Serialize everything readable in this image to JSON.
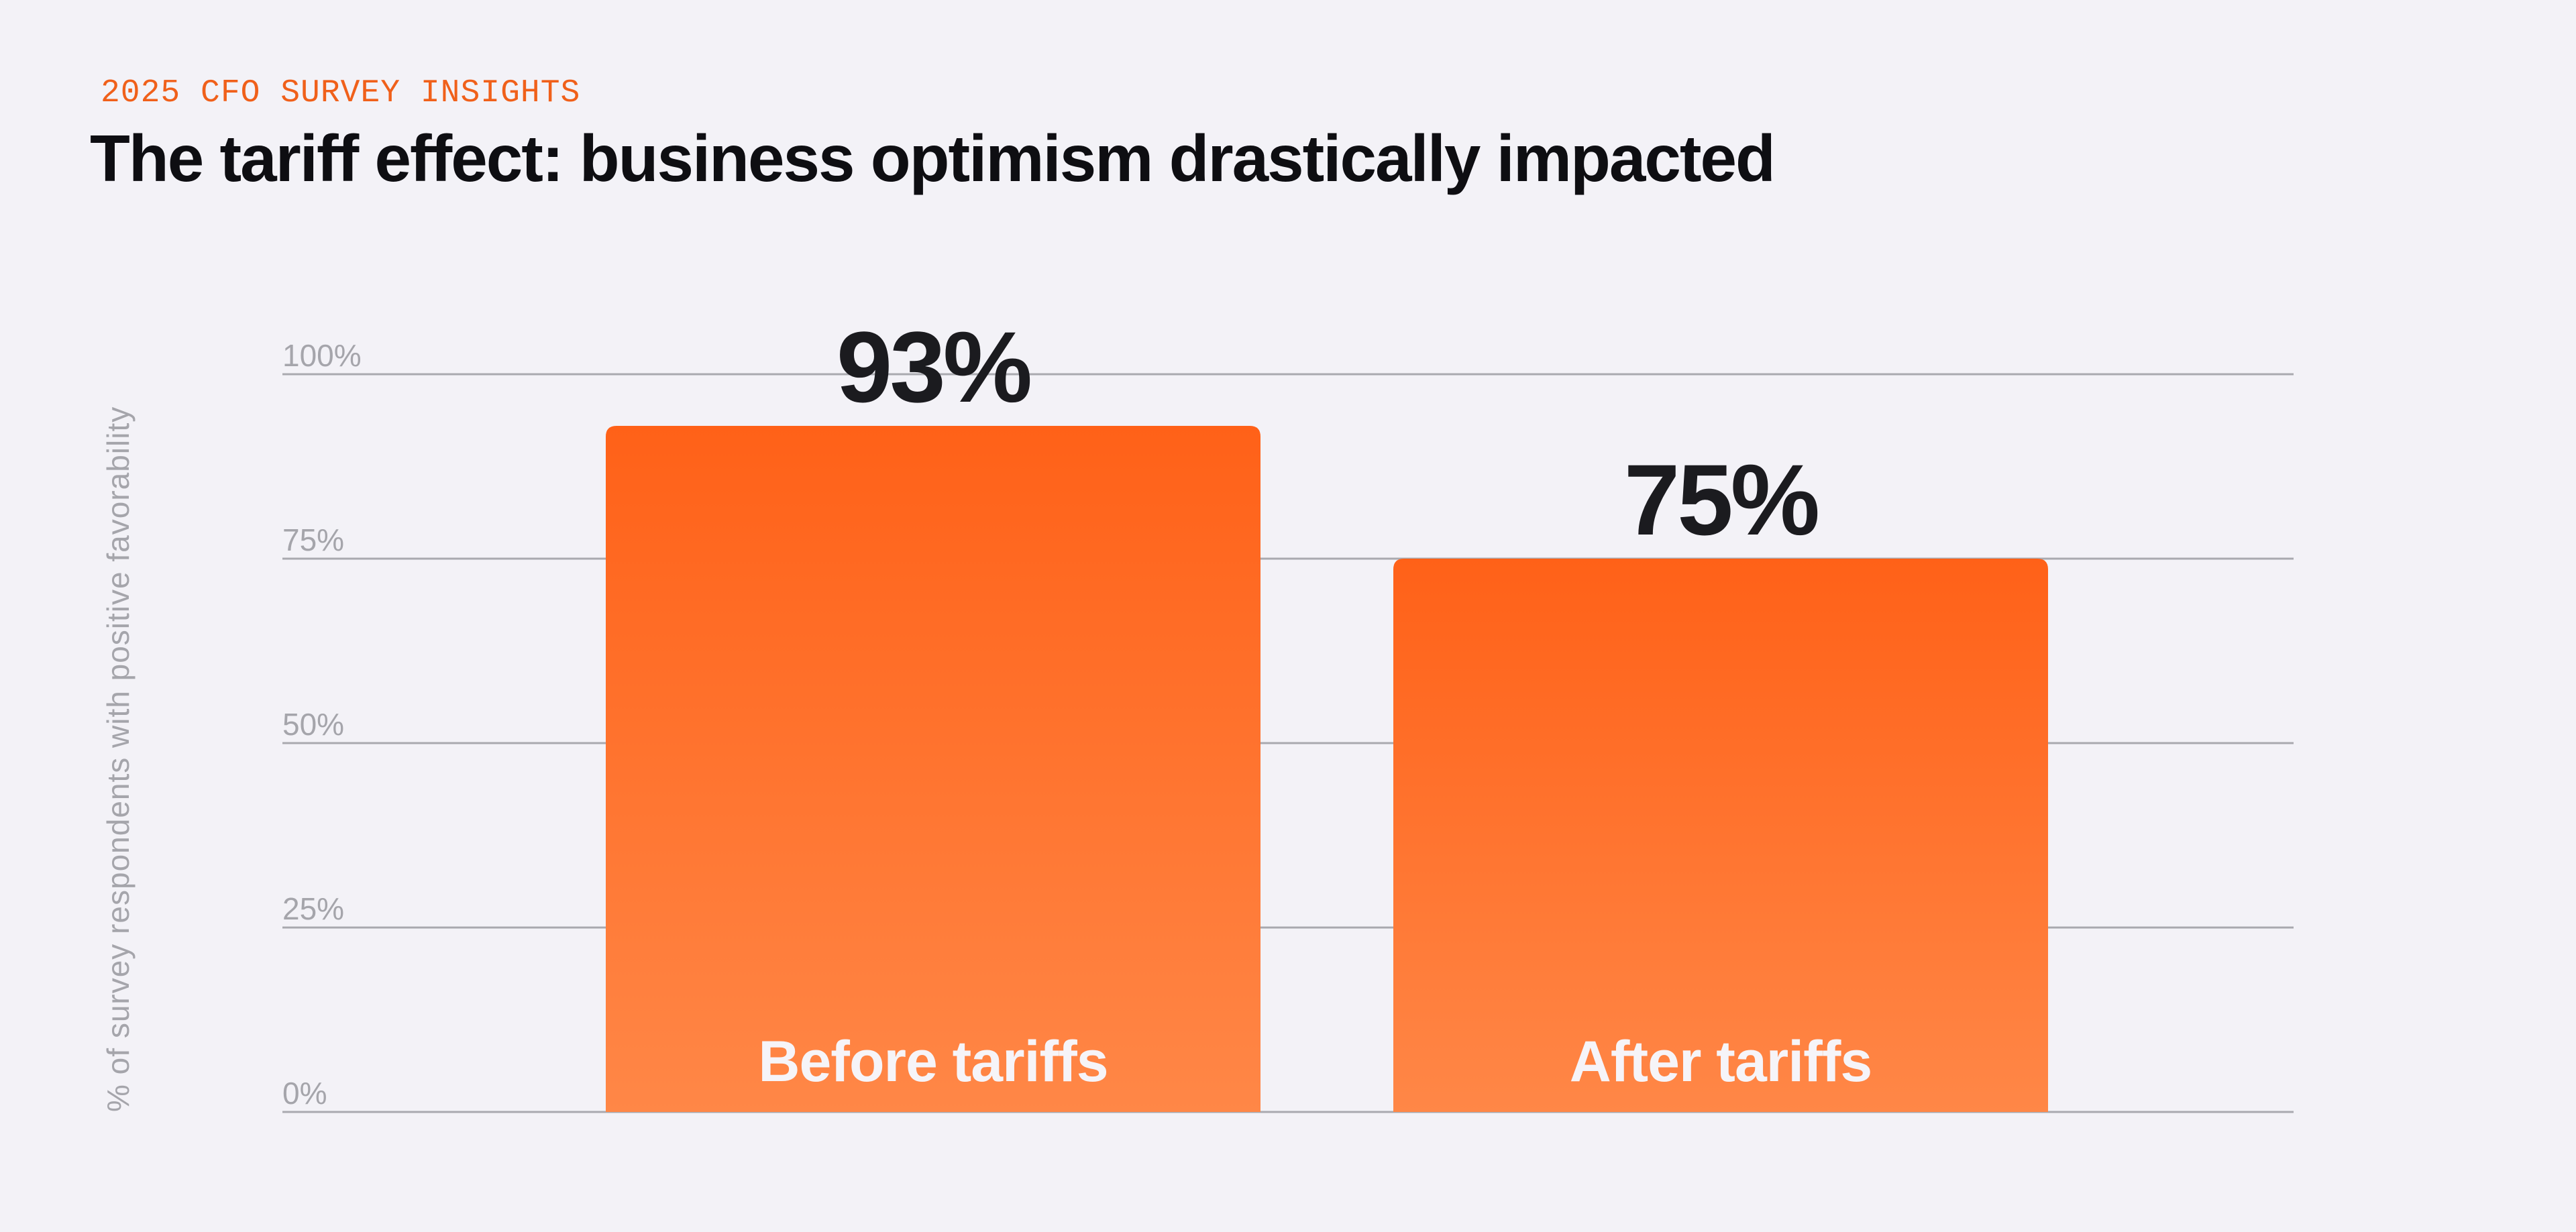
{
  "kicker": "2025 CFO SURVEY INSIGHTS",
  "title": "The tariff effect: business optimism drastically impacted",
  "chart_data": {
    "type": "bar",
    "title": "The tariff effect: business optimism drastically impacted",
    "ylabel": "% of survey respondents with positive favorability",
    "xlabel": "",
    "categories": [
      "Before tariffs",
      "After tariffs"
    ],
    "values": [
      93,
      75
    ],
    "data_labels": [
      "93%",
      "75%"
    ],
    "ylim": [
      0,
      100
    ],
    "yticks": [
      0,
      25,
      50,
      75,
      100
    ],
    "ytick_labels": [
      "0%",
      "25%",
      "50%",
      "75%",
      "100%"
    ],
    "grid": true,
    "legend": "none",
    "colors": {
      "bar_top": "#FF6118",
      "bar_bottom": "#FF8747",
      "label": "#1B1B1F",
      "grid": "#A9A9AF",
      "kicker": "#F0601A"
    }
  }
}
